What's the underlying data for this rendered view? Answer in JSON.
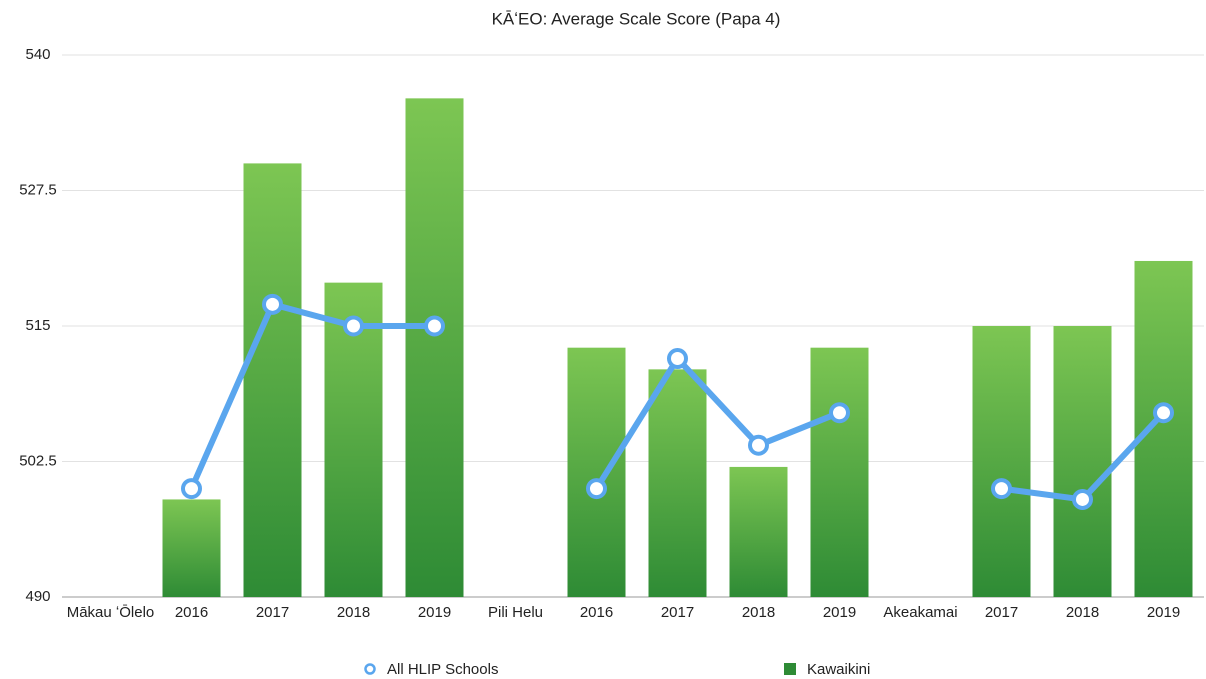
{
  "chart_data": {
    "type": "bar_line",
    "title": "KĀʻEO: Average Scale Score (Papa 4)",
    "categories": [
      "Mākau ʻŌlelo",
      "2016",
      "2017",
      "2018",
      "2019",
      "Pili Helu",
      "2016",
      "2017",
      "2018",
      "2019",
      "Akeakamai",
      "2017",
      "2018",
      "2019"
    ],
    "series": [
      {
        "name": "All HLIP Schools",
        "type": "line",
        "color": "#5aa6ee",
        "values": [
          null,
          500,
          517,
          515,
          515,
          null,
          500,
          512,
          504,
          507,
          null,
          500,
          499,
          507
        ]
      },
      {
        "name": "Kawaikini",
        "type": "bar",
        "color": "#2e8b35",
        "values": [
          null,
          499,
          530,
          519,
          536,
          null,
          513,
          511,
          502,
          513,
          null,
          515,
          515,
          521
        ]
      }
    ],
    "ylim": [
      490,
      540
    ],
    "yticks": [
      490,
      502.5,
      515,
      527.5,
      540
    ],
    "grid": true,
    "legend": "bottom"
  }
}
